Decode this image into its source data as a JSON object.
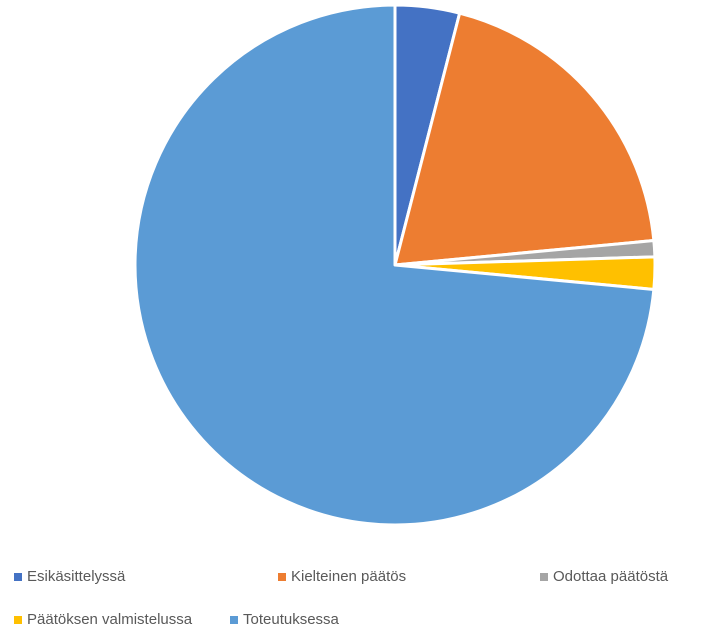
{
  "chart_data": {
    "type": "pie",
    "title": "",
    "start_angle_deg": 90,
    "direction": "clockwise",
    "slices": [
      {
        "label": "Esikäsittelyssä",
        "value": 4,
        "color": "#4472C4"
      },
      {
        "label": "Kielteinen päätös",
        "value": 19.5,
        "color": "#ED7D31"
      },
      {
        "label": "Odottaa päätöstä",
        "value": 1,
        "color": "#A5A5A5"
      },
      {
        "label": "Päätöksen valmistelussa",
        "value": 2,
        "color": "#FFC000"
      },
      {
        "label": "Toteutuksessa",
        "value": 73.5,
        "color": "#5B9BD5"
      }
    ],
    "legend_position": "bottom"
  }
}
